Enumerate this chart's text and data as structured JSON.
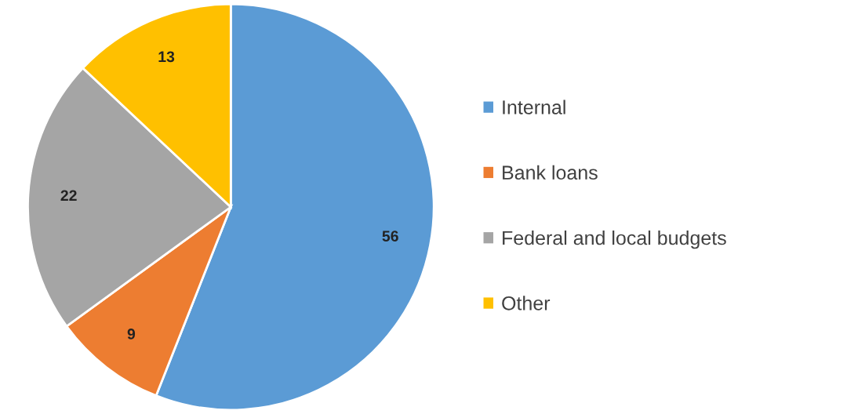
{
  "chart_data": {
    "type": "pie",
    "categories": [
      "Internal",
      "Bank loans",
      "Federal and local budgets",
      "Other"
    ],
    "values": [
      56,
      9,
      22,
      13
    ],
    "colors": [
      "#5b9bd5",
      "#ed7d31",
      "#a5a5a5",
      "#ffc000"
    ],
    "data_labels": true,
    "legend": "right"
  }
}
